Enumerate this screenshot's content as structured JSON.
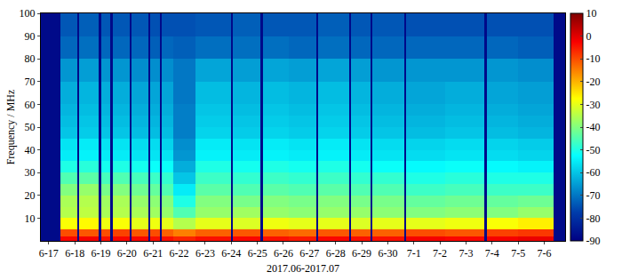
{
  "chart_data": {
    "type": "heatmap",
    "x_label": "2017.06-2017.07",
    "y_label": "Frequency / MHz",
    "color": "Jet",
    "x_edges": [
      -0.3,
      0.44,
      1.08,
      1.16,
      1.93,
      2.01,
      2.37,
      2.45,
      3.11,
      3.19,
      3.82,
      3.9,
      4.26,
      4.34,
      4.78,
      5.63,
      6.98,
      7.06,
      8.13,
      8.21,
      9.2,
      10.26,
      10.34,
      11.52,
      11.6,
      12.33,
      12.41,
      13.62,
      13.7,
      15.2,
      16.71,
      16.79,
      18.0,
      19.36,
      19.8
    ],
    "y_edges": [
      0,
      2,
      5,
      10,
      15,
      20,
      25,
      30,
      35,
      40,
      45,
      50,
      55,
      60,
      70,
      80,
      90,
      100
    ],
    "z": [
      [
        -88,
        -3,
        -88,
        -2,
        -88,
        -4,
        -88,
        -3,
        -88,
        -3,
        -88,
        -4,
        -88,
        -4,
        -6,
        -4,
        -88,
        -3,
        -88,
        -4,
        -5,
        -88,
        -3,
        -88,
        -4,
        -88,
        -4,
        -88,
        -2,
        -3,
        -88,
        -2,
        -1,
        -88
      ],
      [
        -88,
        -10,
        -88,
        -11,
        -88,
        -10,
        -88,
        -9,
        -88,
        -11,
        -88,
        -10,
        -88,
        -12,
        -15,
        -12,
        -88,
        -11,
        -88,
        -12,
        -13,
        -88,
        -11,
        -88,
        -12,
        -88,
        -12,
        -88,
        -10,
        -11,
        -88,
        -9,
        -8,
        -88
      ],
      [
        -88,
        -28,
        -88,
        -27,
        -88,
        -29,
        -88,
        -28,
        -88,
        -30,
        -88,
        -29,
        -88,
        -30,
        -35,
        -30,
        -88,
        -31,
        -88,
        -29,
        -30,
        -88,
        -30,
        -88,
        -31,
        -88,
        -30,
        -88,
        -30,
        -29,
        -88,
        -28,
        -26,
        -88
      ],
      [
        -88,
        -35,
        -88,
        -34,
        -88,
        -36,
        -88,
        -35,
        -88,
        -36,
        -88,
        -37,
        -88,
        -38,
        -45,
        -38,
        -88,
        -37,
        -88,
        -38,
        -39,
        -88,
        -38,
        -88,
        -38,
        -88,
        -39,
        -88,
        -40,
        -39,
        -88,
        -40,
        -38,
        -88
      ],
      [
        -88,
        -36,
        -88,
        -35,
        -88,
        -37,
        -88,
        -36,
        -88,
        -38,
        -88,
        -39,
        -88,
        -40,
        -50,
        -40,
        -88,
        -41,
        -88,
        -40,
        -41,
        -88,
        -40,
        -88,
        -41,
        -88,
        -41,
        -88,
        -43,
        -42,
        -88,
        -43,
        -42,
        -88
      ],
      [
        -88,
        -40,
        -88,
        -38,
        -88,
        -41,
        -88,
        -40,
        -88,
        -42,
        -88,
        -43,
        -88,
        -45,
        -55,
        -44,
        -88,
        -45,
        -88,
        -44,
        -45,
        -88,
        -44,
        -88,
        -45,
        -88,
        -45,
        -88,
        -47,
        -46,
        -88,
        -47,
        -47,
        -88
      ],
      [
        -88,
        -45,
        -88,
        -44,
        -88,
        -46,
        -88,
        -45,
        -88,
        -46,
        -88,
        -47,
        -88,
        -48,
        -60,
        -47,
        -88,
        -48,
        -88,
        -47,
        -48,
        -88,
        -47,
        -88,
        -48,
        -88,
        -48,
        -88,
        -50,
        -49,
        -88,
        -50,
        -50,
        -88
      ],
      [
        -88,
        -50,
        -88,
        -49,
        -88,
        -51,
        -88,
        -50,
        -88,
        -51,
        -88,
        -52,
        -88,
        -52,
        -63,
        -50,
        -88,
        -51,
        -88,
        -50,
        -51,
        -88,
        -50,
        -88,
        -51,
        -88,
        -52,
        -88,
        -53,
        -52,
        -88,
        -53,
        -54,
        -88
      ],
      [
        -88,
        -55,
        -88,
        -54,
        -88,
        -55,
        -88,
        -55,
        -88,
        -56,
        -88,
        -56,
        -88,
        -56,
        -66,
        -54,
        -88,
        -55,
        -88,
        -54,
        -55,
        -88,
        -54,
        -88,
        -55,
        -88,
        -56,
        -88,
        -57,
        -56,
        -88,
        -57,
        -58,
        -88
      ],
      [
        -88,
        -56,
        -88,
        -55,
        -88,
        -56,
        -88,
        -56,
        -88,
        -57,
        -88,
        -57,
        -88,
        -58,
        -67,
        -55,
        -88,
        -56,
        -88,
        -55,
        -56,
        -88,
        -55,
        -88,
        -56,
        -88,
        -57,
        -88,
        -58,
        -57,
        -88,
        -58,
        -59,
        -88
      ],
      [
        -88,
        -60,
        -88,
        -59,
        -88,
        -60,
        -88,
        -60,
        -88,
        -61,
        -88,
        -61,
        -88,
        -61,
        -69,
        -58,
        -88,
        -59,
        -88,
        -58,
        -59,
        -88,
        -58,
        -88,
        -59,
        -88,
        -60,
        -88,
        -61,
        -60,
        -88,
        -61,
        -62,
        -88
      ],
      [
        -88,
        -61,
        -88,
        -60,
        -88,
        -61,
        -88,
        -61,
        -88,
        -62,
        -88,
        -62,
        -88,
        -62,
        -69,
        -59,
        -88,
        -60,
        -88,
        -59,
        -60,
        -88,
        -59,
        -88,
        -60,
        -88,
        -61,
        -88,
        -62,
        -61,
        -88,
        -62,
        -63,
        -88
      ],
      [
        -88,
        -62,
        -88,
        -61,
        -88,
        -62,
        -88,
        -62,
        -88,
        -63,
        -88,
        -63,
        -88,
        -63,
        -69,
        -60,
        -88,
        -61,
        -88,
        -60,
        -61,
        -88,
        -60,
        -88,
        -61,
        -88,
        -62,
        -88,
        -63,
        -62,
        -88,
        -63,
        -64,
        -88
      ],
      [
        -88,
        -63,
        -88,
        -62,
        -88,
        -63,
        -88,
        -63,
        -88,
        -64,
        -88,
        -64,
        -88,
        -64,
        -70,
        -61,
        -88,
        -62,
        -88,
        -61,
        -62,
        -88,
        -61,
        -88,
        -62,
        -88,
        -63,
        -88,
        -64,
        -63,
        -88,
        -64,
        -65,
        -88
      ],
      [
        -88,
        -66,
        -88,
        -65,
        -88,
        -66,
        -88,
        -66,
        -88,
        -67,
        -88,
        -67,
        -88,
        -67,
        -70,
        -64,
        -88,
        -65,
        -88,
        -64,
        -65,
        -88,
        -64,
        -88,
        -65,
        -88,
        -66,
        -88,
        -66,
        -66,
        -88,
        -66,
        -67,
        -88
      ],
      [
        -88,
        -72,
        -88,
        -71,
        -88,
        -72,
        -88,
        -72,
        -88,
        -72,
        -88,
        -73,
        -88,
        -72,
        -73,
        -71,
        -88,
        -71,
        -88,
        -71,
        -72,
        -88,
        -71,
        -88,
        -72,
        -88,
        -72,
        -88,
        -72,
        -72,
        -88,
        -72,
        -73,
        -88
      ],
      [
        -88,
        -74,
        -88,
        -73,
        -88,
        -74,
        -88,
        -74,
        -88,
        -74,
        -88,
        -75,
        -88,
        -75,
        -75,
        -74,
        -88,
        -73,
        -88,
        -74,
        -74,
        -88,
        -73,
        -88,
        -74,
        -88,
        -74,
        -88,
        -75,
        -75,
        -88,
        -75,
        -75,
        -88
      ]
    ],
    "xlim": [
      -0.3,
      19.8
    ],
    "ylim": [
      0,
      100
    ],
    "xticks": [
      {
        "value": 0,
        "label": "6-17"
      },
      {
        "value": 1,
        "label": "6-18"
      },
      {
        "value": 2,
        "label": "6-19"
      },
      {
        "value": 3,
        "label": "6-20"
      },
      {
        "value": 4,
        "label": "6-21"
      },
      {
        "value": 5,
        "label": "6-22"
      },
      {
        "value": 6,
        "label": "6-23"
      },
      {
        "value": 7,
        "label": "6-24"
      },
      {
        "value": 8,
        "label": "6-25"
      },
      {
        "value": 9,
        "label": "6-26"
      },
      {
        "value": 10,
        "label": "6-27"
      },
      {
        "value": 11,
        "label": "6-28"
      },
      {
        "value": 12,
        "label": "6-29"
      },
      {
        "value": 13,
        "label": "6-30"
      },
      {
        "value": 14,
        "label": "7-1"
      },
      {
        "value": 15,
        "label": "7-2"
      },
      {
        "value": 16,
        "label": "7-3"
      },
      {
        "value": 17,
        "label": "7-4"
      },
      {
        "value": 18,
        "label": "7-5"
      },
      {
        "value": 19,
        "label": "7-6"
      }
    ],
    "yticks": [
      10,
      20,
      30,
      40,
      50,
      60,
      70,
      80,
      90,
      100
    ],
    "colorbar_range": [
      -90,
      10
    ],
    "colorbar_ticks": [
      10,
      0,
      -10,
      -20,
      -30,
      -40,
      -50,
      -60,
      -70,
      -80,
      -90
    ]
  }
}
